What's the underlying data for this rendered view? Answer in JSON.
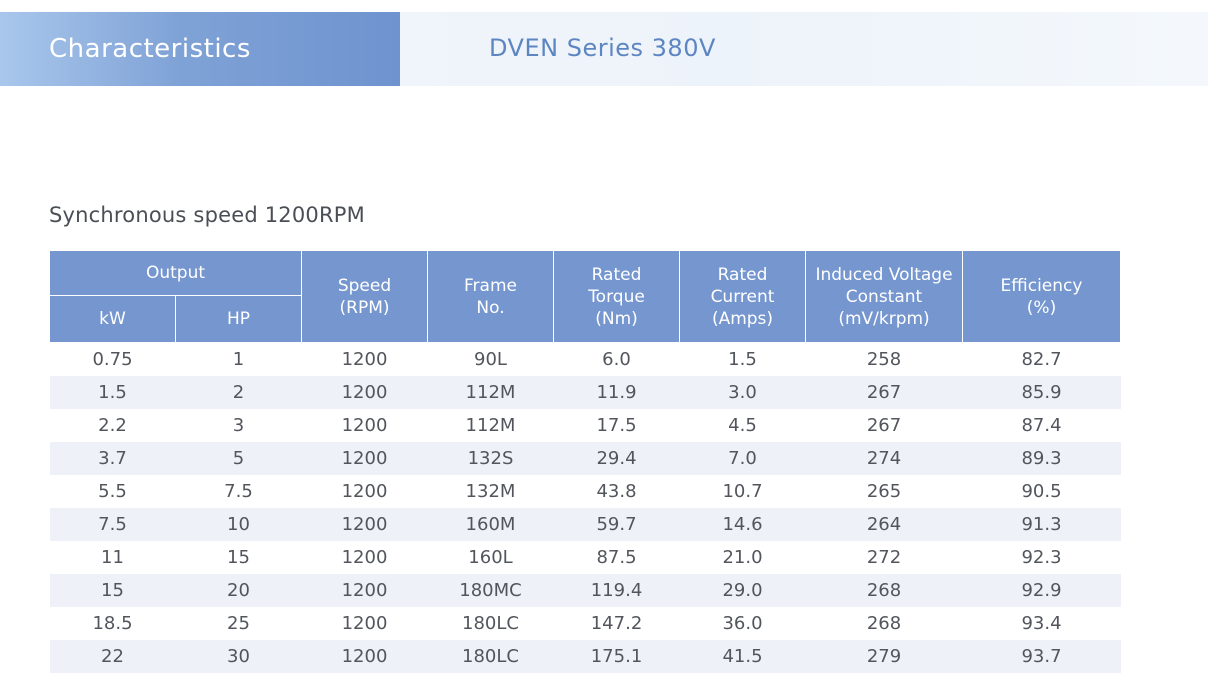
{
  "banner": {
    "tab_label": "Characteristics",
    "series_title": "DVEN Series 380V"
  },
  "section_title": "Synchronous speed 1200RPM",
  "table": {
    "group_header": "Output",
    "columns": {
      "kw": "kW",
      "hp": "HP",
      "speed": [
        "Speed",
        "(RPM)"
      ],
      "frame": [
        "Frame",
        "No."
      ],
      "torque": [
        "Rated",
        "Torque",
        "(Nm)"
      ],
      "current": [
        "Rated",
        "Current",
        "(Amps)"
      ],
      "voltage": [
        "Induced Voltage",
        "Constant",
        "(mV/krpm)"
      ],
      "efficiency": [
        "Efficiency",
        "(%)"
      ]
    },
    "rows": [
      [
        "0.75",
        "1",
        "1200",
        "90L",
        "6.0",
        "1.5",
        "258",
        "82.7"
      ],
      [
        "1.5",
        "2",
        "1200",
        "112M",
        "11.9",
        "3.0",
        "267",
        "85.9"
      ],
      [
        "2.2",
        "3",
        "1200",
        "112M",
        "17.5",
        "4.5",
        "267",
        "87.4"
      ],
      [
        "3.7",
        "5",
        "1200",
        "132S",
        "29.4",
        "7.0",
        "274",
        "89.3"
      ],
      [
        "5.5",
        "7.5",
        "1200",
        "132M",
        "43.8",
        "10.7",
        "265",
        "90.5"
      ],
      [
        "7.5",
        "10",
        "1200",
        "160M",
        "59.7",
        "14.6",
        "264",
        "91.3"
      ],
      [
        "11",
        "15",
        "1200",
        "160L",
        "87.5",
        "21.0",
        "272",
        "92.3"
      ],
      [
        "15",
        "20",
        "1200",
        "180MC",
        "119.4",
        "29.0",
        "268",
        "92.9"
      ],
      [
        "18.5",
        "25",
        "1200",
        "180LC",
        "147.2",
        "36.0",
        "268",
        "93.4"
      ],
      [
        "22",
        "30",
        "1200",
        "180LC",
        "175.1",
        "41.5",
        "279",
        "93.7"
      ]
    ]
  }
}
